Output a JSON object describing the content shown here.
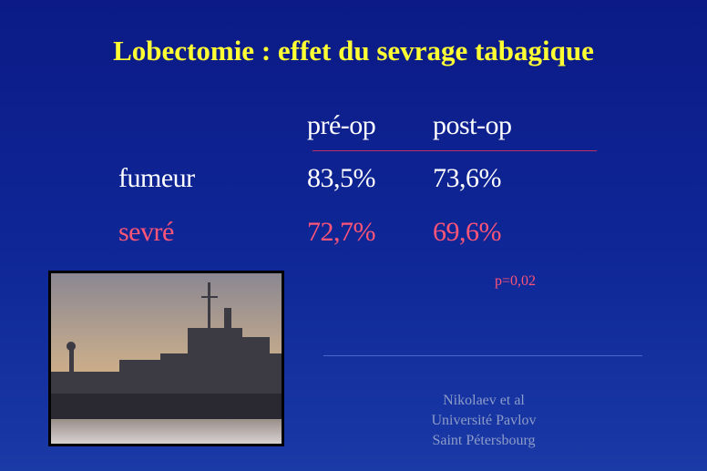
{
  "title": "Lobectomie : effet du sevrage tabagique",
  "table": {
    "headers": [
      "pré-op",
      "post-op"
    ],
    "rows": [
      {
        "label": "fumeur",
        "cells": [
          "83,5%",
          "73,6%"
        ]
      },
      {
        "label": "sevré",
        "cells": [
          "72,7%",
          "69,6%"
        ]
      }
    ]
  },
  "p_value": "p=0,02",
  "source": [
    "Nikolaev et al",
    "Université Pavlov",
    "Saint Pétersbourg"
  ]
}
